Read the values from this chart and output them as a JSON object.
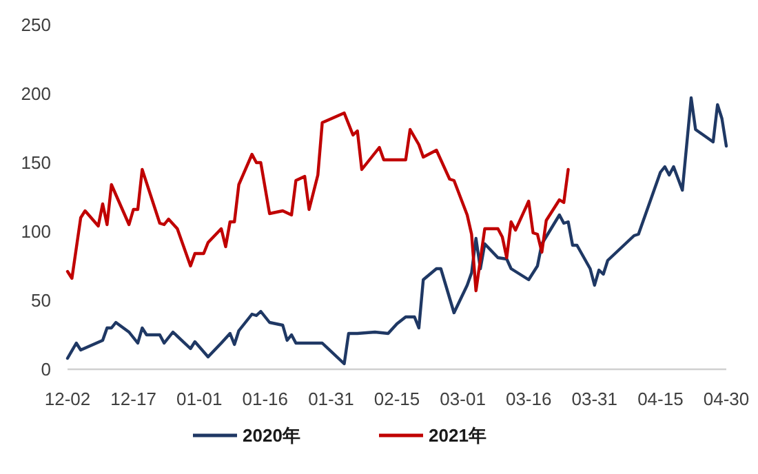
{
  "chart_data": {
    "type": "line",
    "xlim": [
      "2019-12-02",
      "2020-04-30"
    ],
    "xticks": [
      {
        "value": "2019-12-02",
        "label": "12-02"
      },
      {
        "value": "2019-12-17",
        "label": "12-17"
      },
      {
        "value": "2020-01-01",
        "label": "01-01"
      },
      {
        "value": "2020-01-16",
        "label": "01-16"
      },
      {
        "value": "2020-01-31",
        "label": "01-31"
      },
      {
        "value": "2020-02-15",
        "label": "02-15"
      },
      {
        "value": "2020-03-01",
        "label": "03-01"
      },
      {
        "value": "2020-03-16",
        "label": "03-16"
      },
      {
        "value": "2020-03-31",
        "label": "03-31"
      },
      {
        "value": "2020-04-15",
        "label": "04-15"
      },
      {
        "value": "2020-04-30",
        "label": "04-30"
      }
    ],
    "ylim": [
      0,
      250
    ],
    "yticks": [
      0,
      50,
      100,
      150,
      200,
      250
    ],
    "grid": false,
    "legend": "bottom",
    "line_style": "solid",
    "marker": "none",
    "series": [
      {
        "name": "2020年",
        "color": "#1f3864",
        "x": [
          "2019-12-02",
          "2019-12-04",
          "2019-12-05",
          "2019-12-10",
          "2019-12-11",
          "2019-12-12",
          "2019-12-13",
          "2019-12-16",
          "2019-12-18",
          "2019-12-19",
          "2019-12-20",
          "2019-12-23",
          "2019-12-24",
          "2019-12-26",
          "2019-12-30",
          "2019-12-31",
          "2020-01-03",
          "2020-01-06",
          "2020-01-08",
          "2020-01-09",
          "2020-01-10",
          "2020-01-13",
          "2020-01-14",
          "2020-01-15",
          "2020-01-17",
          "2020-01-20",
          "2020-01-21",
          "2020-01-22",
          "2020-01-23",
          "2020-01-29",
          "2020-02-03",
          "2020-02-04",
          "2020-02-06",
          "2020-02-10",
          "2020-02-13",
          "2020-02-15",
          "2020-02-17",
          "2020-02-19",
          "2020-02-20",
          "2020-02-21",
          "2020-02-24",
          "2020-02-25",
          "2020-02-28",
          "2020-03-02",
          "2020-03-03",
          "2020-03-04",
          "2020-03-05",
          "2020-03-06",
          "2020-03-09",
          "2020-03-11",
          "2020-03-12",
          "2020-03-13",
          "2020-03-16",
          "2020-03-18",
          "2020-03-19",
          "2020-03-23",
          "2020-03-24",
          "2020-03-25",
          "2020-03-26",
          "2020-03-27",
          "2020-03-30",
          "2020-03-31",
          "2020-04-01",
          "2020-04-02",
          "2020-04-03",
          "2020-04-09",
          "2020-04-10",
          "2020-04-13",
          "2020-04-15",
          "2020-04-16",
          "2020-04-17",
          "2020-04-18",
          "2020-04-20",
          "2020-04-22",
          "2020-04-23",
          "2020-04-27",
          "2020-04-28",
          "2020-04-29",
          "2020-04-30"
        ],
        "values": [
          8,
          19,
          14,
          21,
          30,
          30,
          34,
          27,
          19,
          30,
          25,
          25,
          19,
          27,
          15,
          20,
          9,
          19,
          26,
          18,
          28,
          40,
          39,
          42,
          34,
          32,
          21,
          25,
          19,
          19,
          4,
          26,
          26,
          27,
          26,
          33,
          38,
          38,
          30,
          65,
          73,
          73,
          41,
          61,
          70,
          95,
          73,
          91,
          81,
          80,
          73,
          71,
          65,
          75,
          91,
          112,
          106,
          107,
          90,
          90,
          73,
          61,
          72,
          69,
          79,
          97,
          98,
          125,
          143,
          147,
          141,
          147,
          130,
          197,
          174,
          165,
          192,
          182,
          162
        ]
      },
      {
        "name": "2021年",
        "color": "#c00000",
        "x": [
          "2019-12-02",
          "2019-12-03",
          "2019-12-05",
          "2019-12-06",
          "2019-12-09",
          "2019-12-10",
          "2019-12-11",
          "2019-12-12",
          "2019-12-16",
          "2019-12-17",
          "2019-12-18",
          "2019-12-19",
          "2019-12-23",
          "2019-12-24",
          "2019-12-25",
          "2019-12-27",
          "2019-12-30",
          "2019-12-31",
          "2020-01-02",
          "2020-01-03",
          "2020-01-06",
          "2020-01-07",
          "2020-01-08",
          "2020-01-09",
          "2020-01-10",
          "2020-01-13",
          "2020-01-14",
          "2020-01-15",
          "2020-01-17",
          "2020-01-20",
          "2020-01-22",
          "2020-01-23",
          "2020-01-25",
          "2020-01-26",
          "2020-01-28",
          "2020-01-29",
          "2020-02-03",
          "2020-02-05",
          "2020-02-06",
          "2020-02-07",
          "2020-02-11",
          "2020-02-12",
          "2020-02-17",
          "2020-02-18",
          "2020-02-20",
          "2020-02-21",
          "2020-02-24",
          "2020-02-27",
          "2020-02-28",
          "2020-03-02",
          "2020-03-03",
          "2020-03-04",
          "2020-03-06",
          "2020-03-09",
          "2020-03-10",
          "2020-03-11",
          "2020-03-12",
          "2020-03-13",
          "2020-03-16",
          "2020-03-17",
          "2020-03-18",
          "2020-03-19",
          "2020-03-20",
          "2020-03-23",
          "2020-03-24",
          "2020-03-25"
        ],
        "values": [
          71,
          66,
          110,
          115,
          104,
          120,
          105,
          134,
          105,
          116,
          116,
          145,
          106,
          105,
          109,
          102,
          75,
          84,
          84,
          92,
          102,
          89,
          107,
          107,
          134,
          156,
          150,
          150,
          113,
          115,
          112,
          137,
          140,
          116,
          141,
          179,
          186,
          170,
          173,
          145,
          161,
          152,
          152,
          174,
          163,
          154,
          159,
          138,
          137,
          112,
          98,
          57,
          102,
          102,
          96,
          81,
          107,
          101,
          122,
          99,
          98,
          85,
          108,
          123,
          121,
          145
        ]
      }
    ]
  }
}
